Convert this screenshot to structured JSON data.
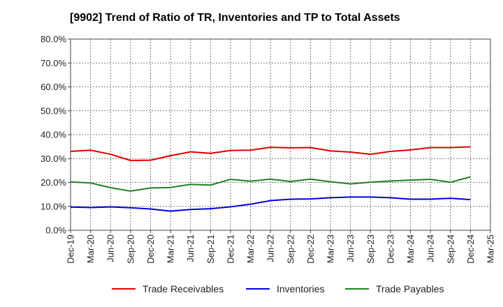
{
  "chart_data": {
    "type": "line",
    "title": "[9902]  Trend of Ratio of TR, Inventories and TP to Total Assets",
    "xlabel": "",
    "ylabel": "",
    "ylim": [
      0,
      80
    ],
    "y_ticks": [
      "0.0%",
      "10.0%",
      "20.0%",
      "30.0%",
      "40.0%",
      "50.0%",
      "60.0%",
      "70.0%",
      "80.0%"
    ],
    "x_ticks": [
      "Dec-19",
      "Mar-20",
      "Jun-20",
      "Sep-20",
      "Dec-20",
      "Mar-21",
      "Jun-21",
      "Sep-21",
      "Dec-21",
      "Mar-22",
      "Jun-22",
      "Sep-22",
      "Dec-22",
      "Mar-23",
      "Jun-23",
      "Sep-23",
      "Dec-23",
      "Mar-24",
      "Jun-24",
      "Sep-24",
      "Dec-24",
      "Mar-25"
    ],
    "x": [
      "Dec-19",
      "Mar-20",
      "Jun-20",
      "Sep-20",
      "Dec-20",
      "Mar-21",
      "Jun-21",
      "Sep-21",
      "Dec-21",
      "Mar-22",
      "Jun-22",
      "Sep-22",
      "Dec-22",
      "Mar-23",
      "Jun-23",
      "Sep-23",
      "Dec-23",
      "Mar-24",
      "Jun-24",
      "Sep-24",
      "Dec-24"
    ],
    "grid": true,
    "legend_position": "bottom",
    "series": [
      {
        "name": "Trade Receivables",
        "color": "#e00000",
        "values": [
          33.0,
          33.5,
          31.8,
          29.2,
          29.3,
          31.2,
          32.8,
          32.2,
          33.4,
          33.5,
          34.7,
          34.5,
          34.6,
          33.2,
          32.7,
          31.8,
          33.0,
          33.6,
          34.6,
          34.6,
          34.9
        ]
      },
      {
        "name": "Inventories",
        "color": "#0000e0",
        "values": [
          9.7,
          9.5,
          9.8,
          9.4,
          8.9,
          8.0,
          8.7,
          9.0,
          9.8,
          10.9,
          12.4,
          13.0,
          13.1,
          13.6,
          13.9,
          13.9,
          13.6,
          13.0,
          13.0,
          13.4,
          12.8
        ]
      },
      {
        "name": "Trade Payables",
        "color": "#208020",
        "values": [
          20.2,
          19.8,
          17.8,
          16.4,
          17.7,
          17.9,
          19.2,
          18.9,
          21.3,
          20.5,
          21.4,
          20.4,
          21.4,
          20.3,
          19.4,
          20.1,
          20.6,
          21.0,
          21.3,
          20.1,
          22.3
        ]
      }
    ]
  }
}
